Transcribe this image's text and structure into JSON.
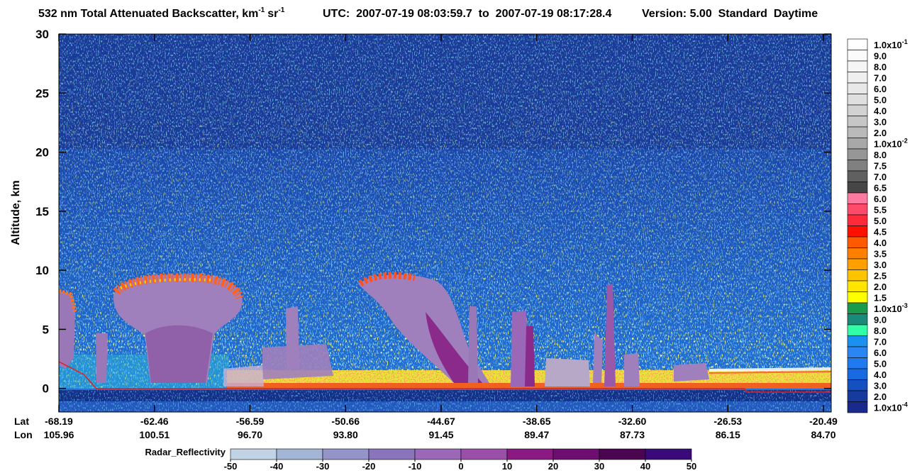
{
  "title": {
    "main": "532 nm Total Attenuated Backscatter, km",
    "exp1": "-1",
    "unit2": "sr",
    "exp2": "-1",
    "utc": "UTC:  2007-07-19 08:03:59.7  to  2007-07-19 08:17:28.4",
    "version": "Version: 5.00  Standard  Daytime"
  },
  "y_axis": {
    "label": "Altitude, km",
    "ylim": [
      -2,
      30
    ],
    "yticks": [
      0,
      5,
      10,
      15,
      20,
      25,
      30
    ]
  },
  "x_axis": {
    "lat_label": "Lat",
    "lon_label": "Lon",
    "lat": [
      -68.19,
      -62.46,
      -56.59,
      -50.66,
      -44.67,
      -38.65,
      {
        "value": -32.6,
        "label": "-32.60"
      },
      -26.53,
      -20.49
    ],
    "lon": [
      105.96,
      100.51,
      {
        "value": 96.7,
        "label": "96.70"
      },
      {
        "value": 93.8,
        "label": "93.80"
      },
      91.45,
      89.47,
      87.73,
      86.15,
      {
        "value": 84.7,
        "label": "84.70"
      }
    ]
  },
  "colorbar": {
    "levels": [
      {
        "label": "1.0x10",
        "sup": "-1",
        "color": "#ffffff"
      },
      {
        "label": "9.0",
        "color": "#fbfbfb"
      },
      {
        "label": "8.0",
        "color": "#f5f5f5"
      },
      {
        "label": "7.0",
        "color": "#efefef"
      },
      {
        "label": "6.0",
        "color": "#e8e8e8"
      },
      {
        "label": "5.0",
        "color": "#dfdfdf"
      },
      {
        "label": "4.0",
        "color": "#d2d2d2"
      },
      {
        "label": "3.0",
        "color": "#c6c6c6"
      },
      {
        "label": "2.0",
        "color": "#bababa"
      },
      {
        "label": "1.0x10",
        "sup": "-2",
        "color": "#a8a8a8"
      },
      {
        "label": "8.0",
        "color": "#969696"
      },
      {
        "label": "7.5",
        "color": "#808080"
      },
      {
        "label": "7.0",
        "color": "#606060"
      },
      {
        "label": "6.5",
        "color": "#464646"
      },
      {
        "label": "6.0",
        "color": "#ff7aa0"
      },
      {
        "label": "5.5",
        "color": "#ff4a6a"
      },
      {
        "label": "5.0",
        "color": "#ff2a3a"
      },
      {
        "label": "4.5",
        "color": "#ff1000"
      },
      {
        "label": "4.0",
        "color": "#ff5a00"
      },
      {
        "label": "3.5",
        "color": "#ff8000"
      },
      {
        "label": "3.0",
        "color": "#ffa000"
      },
      {
        "label": "2.5",
        "color": "#ffc400"
      },
      {
        "label": "2.0",
        "color": "#ffe600"
      },
      {
        "label": "1.5",
        "color": "#ffff00"
      },
      {
        "label": "1.0x10",
        "sup": "-3",
        "color": "#1a9a4a"
      },
      {
        "label": "9.0",
        "color": "#1a8a7a"
      },
      {
        "label": "8.0",
        "color": "#30ffa8"
      },
      {
        "label": "7.0",
        "color": "#1a90f0"
      },
      {
        "label": "6.0",
        "color": "#2a86f2"
      },
      {
        "label": "5.0",
        "color": "#1e7aee"
      },
      {
        "label": "4.0",
        "color": "#186ae0"
      },
      {
        "label": "3.0",
        "color": "#1450c0"
      },
      {
        "label": "2.0",
        "color": "#173a9e"
      },
      {
        "label": "1.0x10",
        "sup": "-4",
        "color": "#1a2a8c"
      }
    ]
  },
  "radar": {
    "label": "Radar_Reflectivity",
    "ticks": [
      -50,
      -40,
      -30,
      -20,
      -10,
      0,
      10,
      20,
      30,
      40,
      50
    ],
    "colors": [
      "#c3d3e6",
      "#a3b6d6",
      "#9494c8",
      "#8a74bc",
      "#9a68b6",
      "#9a50a8",
      "#8a1a82",
      "#6e0e70",
      "#4a0450",
      "#3a0a7a"
    ]
  }
}
